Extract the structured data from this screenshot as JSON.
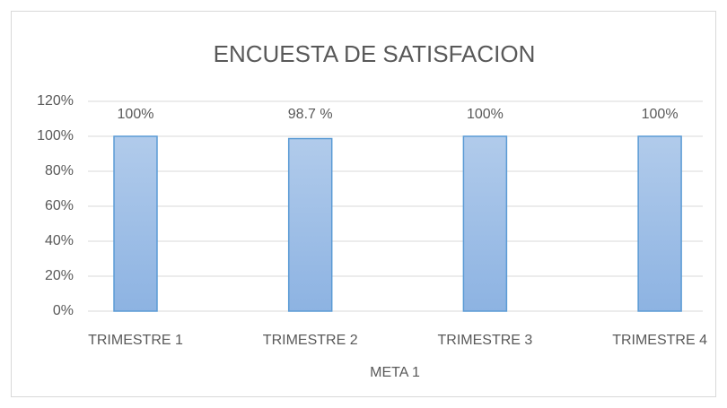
{
  "chart_data": {
    "type": "bar",
    "title": "ENCUESTA DE SATISFACION",
    "categories": [
      "TRIMESTRE 1",
      "TRIMESTRE 2",
      "TRIMESTRE 3",
      "TRIMESTRE 4"
    ],
    "values": [
      100,
      98.7,
      100,
      100
    ],
    "value_labels": [
      "100%",
      "98.7 %",
      "100%",
      "100%"
    ],
    "color": "#9dbde8",
    "xlabel": "META 1",
    "ylim": [
      0,
      120
    ],
    "yticks": [
      {
        "value": 0,
        "label": "0%"
      },
      {
        "value": 20,
        "label": "20%"
      },
      {
        "value": 40,
        "label": "40%"
      },
      {
        "value": 60,
        "label": "60%"
      },
      {
        "value": 80,
        "label": "80%"
      },
      {
        "value": 100,
        "label": "100%"
      },
      {
        "value": 120,
        "label": "120%"
      }
    ],
    "grid": true
  }
}
